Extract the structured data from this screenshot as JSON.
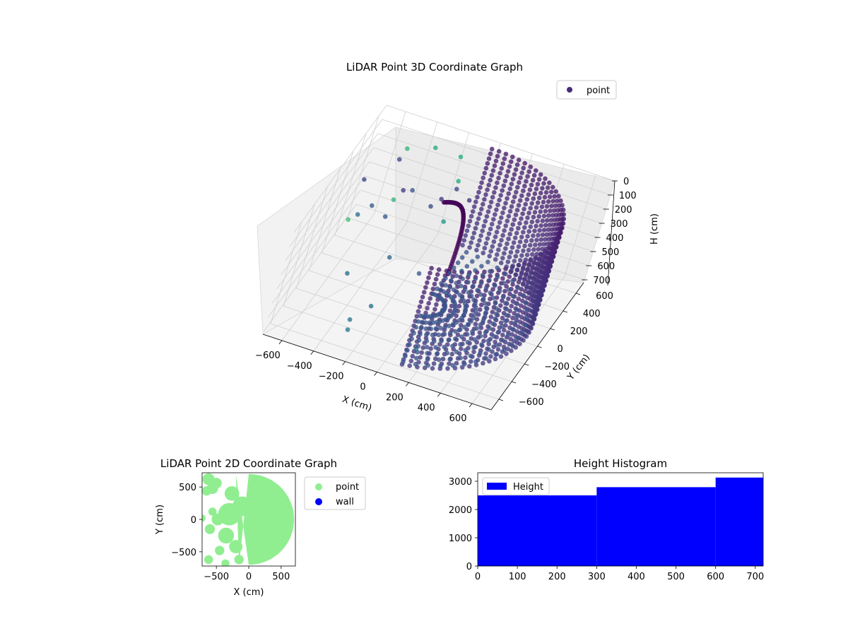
{
  "chart_data": [
    {
      "type": "scatter",
      "projection": "3d",
      "title": "LiDAR Point 3D Coordinate Graph",
      "xlabel": "X (cm)",
      "ylabel": "Y (cm)",
      "zlabel": "H (cm)",
      "xlim": [
        -720,
        720
      ],
      "ylim": [
        -720,
        720
      ],
      "zlim": [
        0,
        720
      ],
      "zaxis_inverted": true,
      "xticks": [
        "−600",
        "−400",
        "−200",
        "0",
        "200",
        "400",
        "600"
      ],
      "yticks": [
        "−600",
        "−400",
        "−200",
        "0",
        "200",
        "400",
        "600"
      ],
      "zticks": [
        "0",
        "100",
        "200",
        "300",
        "400",
        "500",
        "600",
        "700"
      ],
      "colormap": "viridis",
      "grid": true,
      "legend": {
        "placement": "top-right",
        "entries": [
          "point"
        ]
      },
      "series": [
        {
          "name": "point",
          "color": "#472c7a",
          "description_points": "scanned points; a cylindrical wall of radius ~640 cm spanning heights 0–700 cm, plus scattered interior points",
          "points": [
            {
              "x": -660,
              "y": 560,
              "z": 650
            },
            {
              "x": -560,
              "y": 400,
              "z": 450
            },
            {
              "x": -430,
              "y": 240,
              "z": 380
            },
            {
              "x": -380,
              "y": 520,
              "z": 350
            },
            {
              "x": -300,
              "y": 80,
              "z": 520
            },
            {
              "x": -480,
              "y": -80,
              "z": 600
            },
            {
              "x": -250,
              "y": -250,
              "z": 640
            },
            {
              "x": -200,
              "y": 300,
              "z": 260
            },
            {
              "x": -130,
              "y": 200,
              "z": 120
            },
            {
              "x": 40,
              "y": 160,
              "z": 40
            },
            {
              "x": -60,
              "y": -120,
              "z": 420
            },
            {
              "x": 120,
              "y": -420,
              "z": 700
            },
            {
              "x": -620,
              "y": 260,
              "z": 200
            },
            {
              "x": -530,
              "y": 620,
              "z": 250
            },
            {
              "x": -320,
              "y": -380,
              "z": 680
            },
            {
              "x": -120,
              "y": 480,
              "z": 220
            },
            {
              "x": -360,
              "y": 180,
              "z": 130
            }
          ]
        }
      ]
    },
    {
      "type": "scatter",
      "title": "LiDAR Point 2D Coordinate Graph",
      "xlabel": "X (cm)",
      "ylabel": "Y (cm)",
      "xlim": [
        -720,
        720
      ],
      "ylim": [
        -720,
        720
      ],
      "xticks": [
        -500,
        0,
        500
      ],
      "yticks": [
        -500,
        0,
        500
      ],
      "legend": {
        "placement": "right",
        "entries": [
          "point",
          "wall"
        ]
      },
      "series": [
        {
          "name": "point",
          "color": "#90ee90",
          "shape": "half-disk of radius ~700 cm, filled, x ≥ -200 with scattered blobs toward x = -700"
        },
        {
          "name": "wall",
          "color": "#0000ff",
          "points": []
        }
      ]
    },
    {
      "type": "bar",
      "subtype": "histogram",
      "title": "Height Histogram",
      "xlim": [
        0,
        720
      ],
      "ylim": [
        0,
        3300
      ],
      "xticks": [
        0,
        100,
        200,
        300,
        400,
        500,
        600,
        700
      ],
      "yticks": [
        0,
        1000,
        2000,
        3000
      ],
      "legend": {
        "placement": "top-left",
        "entries": [
          "Height"
        ]
      },
      "series": [
        {
          "name": "Height",
          "color": "#0000ff",
          "bins": [
            {
              "from": 0,
              "to": 300,
              "count": 2500
            },
            {
              "from": 300,
              "to": 600,
              "count": 2790
            },
            {
              "from": 600,
              "to": 720,
              "count": 3130
            }
          ]
        }
      ]
    }
  ]
}
